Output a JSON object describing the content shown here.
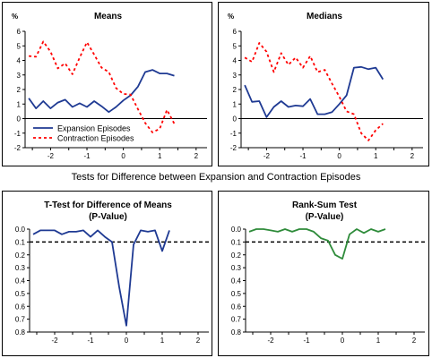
{
  "section_title": "Tests for Difference between Expansion and Contraction Episodes",
  "chart_data": [
    {
      "type": "line",
      "title": "Means",
      "ylabel": "%",
      "ylim": [
        -2,
        6
      ],
      "yticks": [
        -2,
        -1,
        0,
        1,
        2,
        3,
        4,
        5,
        6
      ],
      "xlim": [
        -2.7,
        2.3
      ],
      "xticks": [
        -2,
        -1,
        0,
        1,
        2
      ],
      "x": [
        -2.6,
        -2.4,
        -2.2,
        -2.0,
        -1.8,
        -1.6,
        -1.4,
        -1.2,
        -1.0,
        -0.8,
        -0.6,
        -0.4,
        -0.2,
        0.0,
        0.2,
        0.4,
        0.6,
        0.8,
        1.0,
        1.2,
        1.4,
        1.6,
        1.8,
        2.0,
        2.2
      ],
      "series": [
        {
          "name": "Expansion Episodes",
          "style": "solid",
          "color": "#1f3a93",
          "values": [
            1.4,
            0.7,
            1.2,
            0.7,
            1.1,
            1.3,
            0.8,
            1.05,
            0.8,
            1.2,
            0.85,
            0.45,
            0.8,
            1.25,
            1.6,
            2.2,
            3.2,
            3.35,
            3.1,
            3.1,
            2.95,
            null,
            null,
            null,
            null
          ]
        },
        {
          "name": "Contraction Episodes",
          "style": "dotted",
          "color": "#ff0000",
          "values": [
            4.3,
            4.25,
            5.3,
            4.6,
            3.45,
            3.8,
            3.05,
            4.2,
            5.25,
            4.4,
            3.5,
            3.2,
            2.1,
            1.7,
            1.65,
            0.65,
            -0.3,
            -0.95,
            -0.7,
            0.6,
            -0.35,
            null,
            null,
            null,
            null
          ]
        }
      ],
      "legend": "bottom-left"
    },
    {
      "type": "line",
      "title": "Medians",
      "ylabel": "%",
      "ylim": [
        -2,
        6
      ],
      "yticks": [
        -2,
        -1,
        0,
        1,
        2,
        3,
        4,
        5,
        6
      ],
      "xlim": [
        -2.7,
        2.3
      ],
      "xticks": [
        -2,
        -1,
        0,
        1,
        2
      ],
      "x": [
        -2.6,
        -2.4,
        -2.2,
        -2.0,
        -1.8,
        -1.6,
        -1.4,
        -1.2,
        -1.0,
        -0.8,
        -0.6,
        -0.4,
        -0.2,
        0.0,
        0.2,
        0.4,
        0.6,
        0.8,
        1.0,
        1.2,
        1.4,
        1.6,
        1.8,
        2.0,
        2.2
      ],
      "series": [
        {
          "name": "Expansion Episodes",
          "style": "solid",
          "color": "#1f3a93",
          "values": [
            2.3,
            1.15,
            1.2,
            0.1,
            0.8,
            1.2,
            0.8,
            0.9,
            0.85,
            1.35,
            0.3,
            0.3,
            0.45,
            1.0,
            1.6,
            3.5,
            3.55,
            3.4,
            3.5,
            2.7,
            null,
            null,
            null,
            null,
            null
          ]
        },
        {
          "name": "Contraction Episodes",
          "style": "dotted",
          "color": "#ff0000",
          "values": [
            4.2,
            3.9,
            5.2,
            4.6,
            3.2,
            4.5,
            3.7,
            4.2,
            3.5,
            4.3,
            3.2,
            3.35,
            2.4,
            1.5,
            0.5,
            0.3,
            -1.0,
            -1.5,
            -0.8,
            -0.35,
            null,
            null,
            null,
            null,
            null
          ]
        }
      ]
    },
    {
      "type": "line",
      "title": "T-Test for Difference of Means",
      "subtitle": "(P-Value)",
      "ylim": [
        0.0,
        0.8
      ],
      "yticks": [
        0.0,
        0.1,
        0.2,
        0.3,
        0.4,
        0.5,
        0.6,
        0.7,
        0.8
      ],
      "ytick_labels": [
        "0.0",
        "0.1",
        "0.2",
        "0.3",
        "0.4",
        "0.5",
        "0.6",
        "0.7",
        "0.8"
      ],
      "y_inverted": true,
      "xlim": [
        -2.7,
        2.3
      ],
      "xticks": [
        -2,
        -1,
        0,
        1,
        2
      ],
      "reference_line": 0.1,
      "x": [
        -2.6,
        -2.4,
        -2.2,
        -2.0,
        -1.8,
        -1.6,
        -1.4,
        -1.2,
        -1.0,
        -0.8,
        -0.6,
        -0.4,
        -0.2,
        0.0,
        0.2,
        0.4,
        0.6,
        0.8,
        1.0,
        1.2,
        1.4,
        1.6,
        1.8,
        2.0,
        2.2
      ],
      "series": [
        {
          "style": "solid",
          "color": "#1f3a93",
          "values": [
            0.04,
            0.01,
            0.01,
            0.01,
            0.04,
            0.02,
            0.02,
            0.01,
            0.06,
            0.01,
            0.06,
            0.1,
            0.45,
            0.75,
            0.12,
            0.01,
            0.02,
            0.01,
            0.17,
            0.01,
            null,
            null,
            null,
            null,
            null
          ]
        }
      ]
    },
    {
      "type": "line",
      "title": "Rank-Sum Test",
      "subtitle": "(P-Value)",
      "ylim": [
        0.0,
        0.8
      ],
      "yticks": [
        0.0,
        0.1,
        0.2,
        0.3,
        0.4,
        0.5,
        0.6,
        0.7,
        0.8
      ],
      "ytick_labels": [
        "0.0",
        "0.1",
        "0.2",
        "0.3",
        "0.4",
        "0.5",
        "0.6",
        "0.7",
        "0.8"
      ],
      "y_inverted": true,
      "xlim": [
        -2.7,
        2.3
      ],
      "xticks": [
        -2,
        -1,
        0,
        1,
        2
      ],
      "reference_line": 0.1,
      "x": [
        -2.6,
        -2.4,
        -2.2,
        -2.0,
        -1.8,
        -1.6,
        -1.4,
        -1.2,
        -1.0,
        -0.8,
        -0.6,
        -0.4,
        -0.2,
        0.0,
        0.2,
        0.4,
        0.6,
        0.8,
        1.0,
        1.2,
        1.4,
        1.6,
        1.8,
        2.0,
        2.2
      ],
      "series": [
        {
          "style": "solid",
          "color": "#2e8b3a",
          "values": [
            0.02,
            0.0,
            0.0,
            0.01,
            0.02,
            0.0,
            0.02,
            0.0,
            0.0,
            0.02,
            0.07,
            0.09,
            0.2,
            0.23,
            0.04,
            0.0,
            0.03,
            0.0,
            0.02,
            0.0,
            null,
            null,
            null,
            null,
            null
          ]
        }
      ]
    }
  ]
}
